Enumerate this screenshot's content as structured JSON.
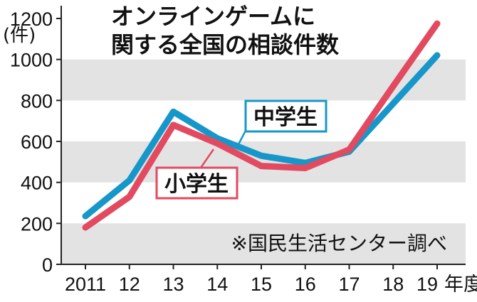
{
  "chart_data": {
    "type": "line",
    "title": "オンラインゲームに\n関する全国の相談件数",
    "ylabel_unit": "(件)",
    "source": "※国民生活センター調べ",
    "categories": [
      "2011",
      "12",
      "13",
      "14",
      "15",
      "16",
      "17",
      "18",
      "19"
    ],
    "x_suffix": "年度",
    "ylim": [
      0,
      1200
    ],
    "yticks": [
      0,
      200,
      400,
      600,
      800,
      1000,
      1200
    ],
    "grid": "alternating horizontal bands",
    "series": [
      {
        "name": "中学生",
        "color": "#1797c9",
        "values": [
          235,
          410,
          745,
          615,
          530,
          495,
          550,
          785,
          1020
        ]
      },
      {
        "name": "小学生",
        "color": "#e24a60",
        "values": [
          180,
          330,
          680,
          590,
          480,
          470,
          560,
          870,
          1175
        ]
      }
    ]
  }
}
